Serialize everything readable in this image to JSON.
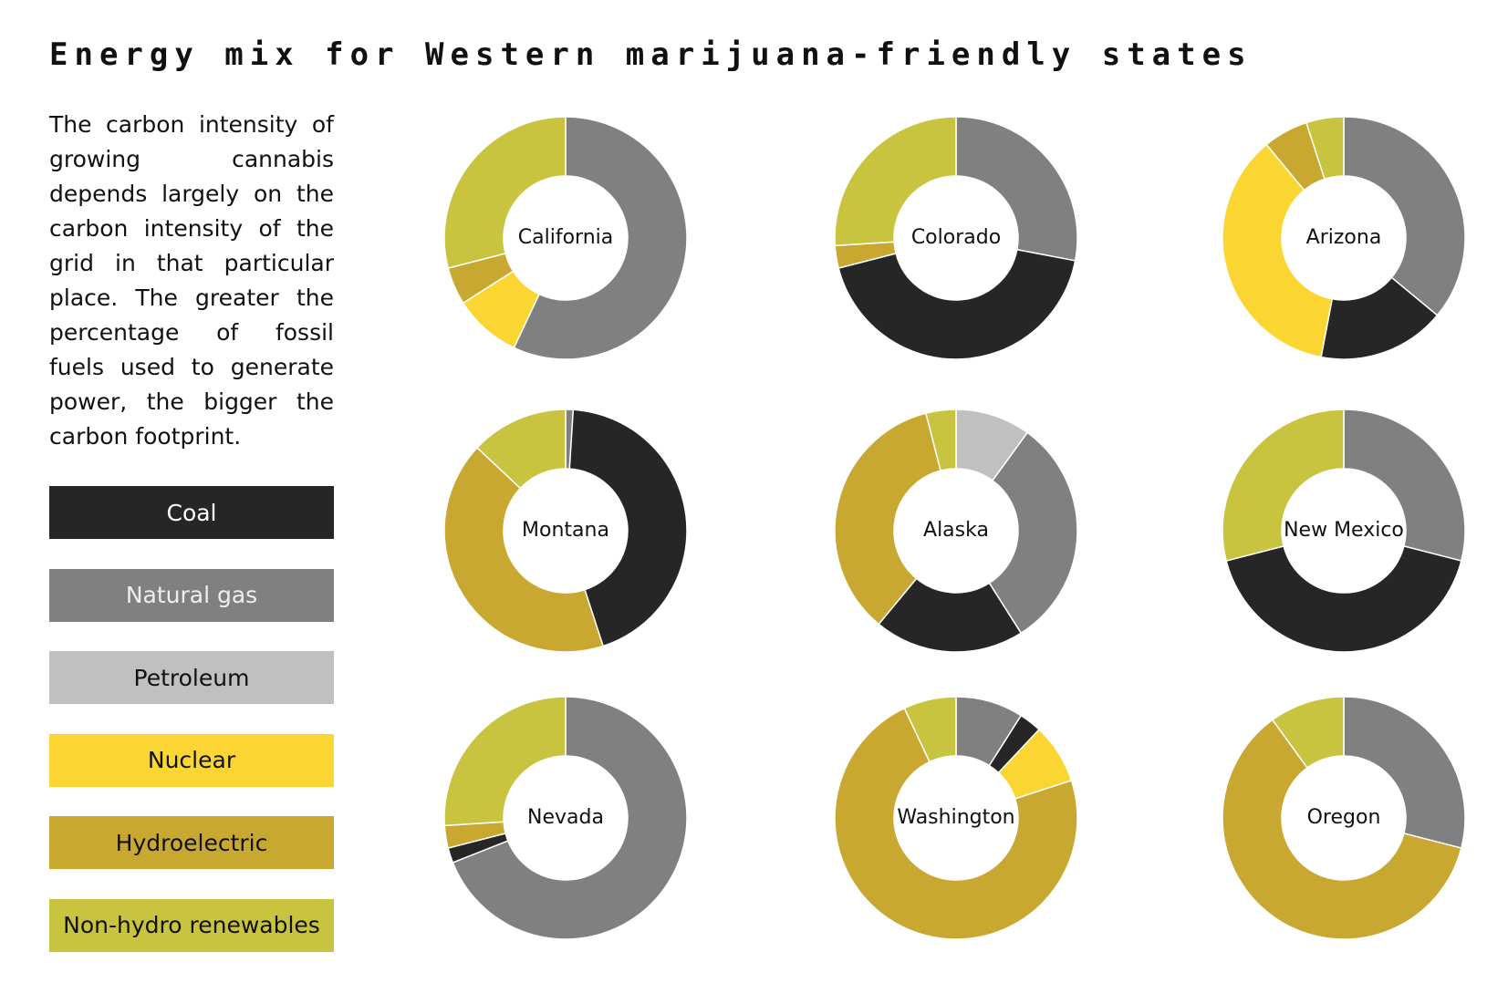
{
  "title": "Energy mix for Western marijuana-friendly states",
  "description": "The carbon intensity of growing cannabis depends largely on the carbon intensity of the grid in that particular place. The greater the percentage of fossil fuels used to generate power, the bigger the carbon footprint.",
  "legend": {
    "categories": [
      "Coal",
      "Natural gas",
      "Petroleum",
      "Nuclear",
      "Hydroelectric",
      "Non-hydro renewables"
    ],
    "colors": [
      "#262626",
      "#808080",
      "#c0c0c0",
      "#fbd632",
      "#c9a832",
      "#c9c43f"
    ]
  },
  "chart_data": [
    {
      "type": "donut",
      "title": "California",
      "values": [
        0,
        57,
        0,
        9,
        5,
        29
      ]
    },
    {
      "type": "donut",
      "title": "Colorado",
      "values": [
        43,
        28,
        0,
        0,
        3,
        26
      ]
    },
    {
      "type": "donut",
      "title": "Arizona",
      "values": [
        17,
        36,
        0,
        36,
        6,
        5
      ]
    },
    {
      "type": "donut",
      "title": "Montana",
      "values": [
        44,
        1,
        0,
        0,
        42,
        13
      ]
    },
    {
      "type": "donut",
      "title": "Alaska",
      "values": [
        20,
        31,
        10,
        0,
        35,
        4
      ]
    },
    {
      "type": "donut",
      "title": "New Mexico",
      "values": [
        42,
        29,
        0,
        0,
        0,
        29
      ]
    },
    {
      "type": "donut",
      "title": "Nevada",
      "values": [
        2,
        69,
        0,
        0,
        3,
        26
      ]
    },
    {
      "type": "donut",
      "title": "Washington",
      "values": [
        3,
        9,
        0,
        8,
        73,
        7
      ]
    },
    {
      "type": "donut",
      "title": "Oregon",
      "values": [
        0,
        29,
        0,
        0,
        61,
        10
      ]
    }
  ]
}
